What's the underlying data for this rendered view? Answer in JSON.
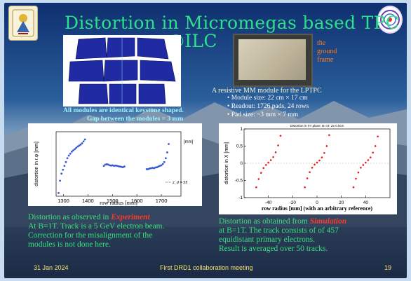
{
  "slide": {
    "title_line1": "Distortion in Micromegas based TPC",
    "title_line2": "@ILC",
    "frame_label_lines": [
      "the",
      "ground",
      "frame"
    ],
    "modules_caption_lines": [
      "All modules are identical keystone shaped.",
      "Gap between the modules = 3 mm"
    ],
    "module_caption": "A resistive MM module for  the LPTPC",
    "bullets": [
      "Module size: 22 cm × 17 cm",
      "Readout:   1726 pads, 24 rows",
      "Pad size:  ~3 mm × 7 mm"
    ],
    "exp_text": {
      "line1_prefix": "Distortion as observed in ",
      "line1_emph": "Experiment",
      "line2": "At B=1T. Track is a 5 GeV electron beam.",
      "line3": "Correction for the misalignment of the",
      "line4": "modules is not done here."
    },
    "sim_text": {
      "line1_prefix": "Distortion as obtained from ",
      "line1_emph": "Simulation",
      "line2": "at B=1T. The track consists of of 457",
      "line3": "equidistant primary electrons.",
      "line4": "Result is averaged over 50 tracks."
    },
    "footer": {
      "date": "31 Jan 2024",
      "meeting": "First DRD1 collaboration meeting",
      "page": "19"
    }
  },
  "chart_data": [
    {
      "type": "scatter",
      "title": "",
      "xlabel": "row radius [mm]",
      "ylabel": "distortion in r.φ [mm]",
      "unit_label": "[mm]",
      "legend": "z_d = 55",
      "xlim": [
        1270,
        1780
      ],
      "ylim": [
        -1.0,
        1.0
      ],
      "xticks": [
        1300,
        1400,
        1500,
        1600,
        1700
      ],
      "series": [
        {
          "segments": [
            {
              "x": [
                1280,
                1286,
                1292,
                1298,
                1304,
                1310,
                1316,
                1322,
                1328,
                1334,
                1340,
                1346,
                1352,
                1358,
                1364,
                1370,
                1376,
                1382,
                1388
              ],
              "y": [
                -0.9,
                -0.52,
                -0.3,
                -0.18,
                -0.06,
                0.06,
                0.18,
                0.26,
                0.32,
                0.38,
                0.42,
                0.46,
                0.5,
                0.54,
                0.57,
                0.6,
                0.64,
                0.7,
                0.76
              ]
            },
            {
              "x": [
                1465,
                1471,
                1477,
                1483,
                1489,
                1495,
                1501,
                1507,
                1513,
                1519,
                1525,
                1531,
                1537,
                1543,
                1549
              ],
              "y": [
                -0.06,
                -0.02,
                -0.01,
                -0.02,
                -0.04,
                -0.05,
                -0.04,
                -0.06,
                -0.05,
                -0.06,
                -0.07,
                -0.08,
                -0.09,
                -0.1,
                -0.08
              ]
            },
            {
              "x": [
                1640,
                1646,
                1652,
                1658,
                1664,
                1670,
                1676,
                1682,
                1688,
                1694,
                1700,
                1706,
                1712,
                1718,
                1724,
                1730
              ],
              "y": [
                -0.16,
                -0.16,
                -0.14,
                -0.13,
                -0.12,
                -0.13,
                -0.11,
                -0.1,
                -0.08,
                -0.06,
                -0.04,
                0.0,
                0.06,
                0.18,
                0.36,
                0.62
              ]
            }
          ]
        }
      ]
    },
    {
      "type": "scatter",
      "title": "Distortion in XY plane, B=1T, Zx 0.5cm",
      "xlabel": "row radius [mm] (with an arbitrary reference)",
      "ylabel": "distortion in X [mm]",
      "xlim": [
        -60,
        60
      ],
      "ylim": [
        -1.0,
        1.0
      ],
      "xticks": [
        -40,
        -20,
        0,
        20,
        40
      ],
      "yticks": [
        -1,
        -0.5,
        0,
        0.5,
        1
      ],
      "series": [
        {
          "color": "#e11b1b",
          "segments": [
            {
              "x": [
                -50,
                -48,
                -46,
                -44,
                -42,
                -40,
                -38,
                -36,
                -34,
                -32,
                -30
              ],
              "y": [
                -0.7,
                -0.46,
                -0.28,
                -0.14,
                -0.05,
                0.02,
                0.09,
                0.18,
                0.32,
                0.52,
                0.8
              ]
            },
            {
              "x": [
                -10,
                -8,
                -6,
                -4,
                -2,
                0,
                2,
                4,
                6,
                8,
                10
              ],
              "y": [
                -0.7,
                -0.44,
                -0.26,
                -0.13,
                -0.04,
                0.02,
                0.08,
                0.17,
                0.3,
                0.5,
                0.82
              ]
            },
            {
              "x": [
                30,
                32,
                34,
                36,
                38,
                40,
                42,
                44,
                46,
                48,
                50
              ],
              "y": [
                -0.7,
                -0.45,
                -0.27,
                -0.13,
                -0.05,
                0.02,
                0.09,
                0.17,
                0.31,
                0.5,
                0.78
              ]
            }
          ]
        }
      ]
    }
  ]
}
